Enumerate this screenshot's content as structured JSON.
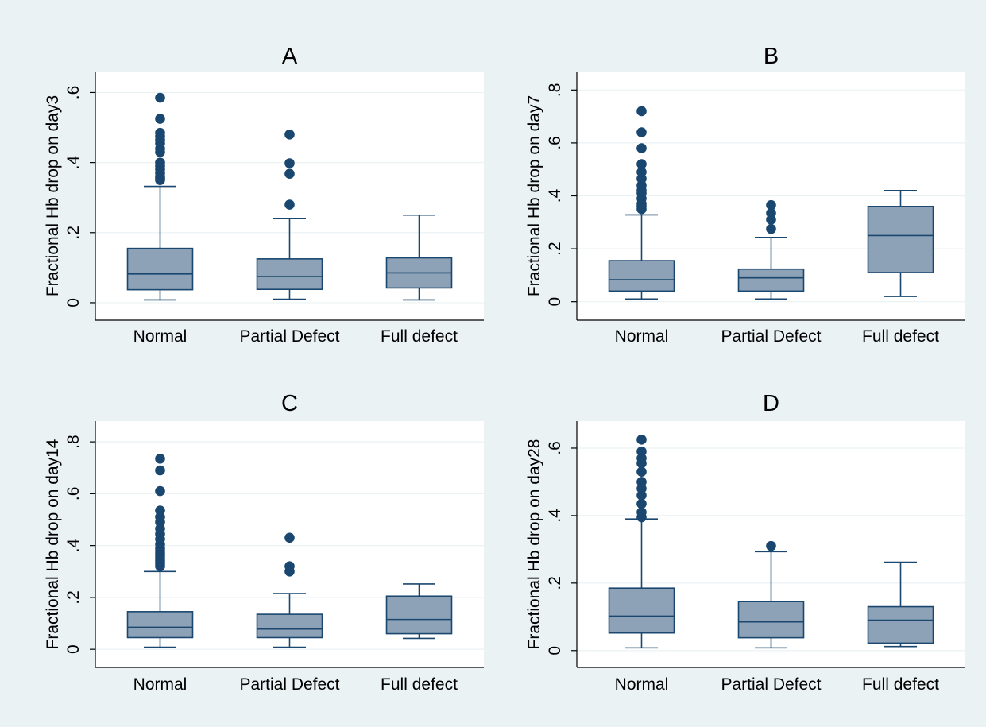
{
  "colors": {
    "outer_background": "#eaf2f3",
    "plot_background": "#ffffff",
    "gridline": "#eaf2f3",
    "box_fill": "#8da2b6",
    "box_stroke": "#1a476f",
    "outlier": "#1a476f",
    "axis": "#000000"
  },
  "chart_data": [
    {
      "type": "box",
      "title": "A",
      "ylabel": "Fractional Hb drop on day3",
      "categories": [
        "Normal",
        "Partial Defect",
        "Full defect"
      ],
      "yticks": [
        0,
        0.2,
        0.4,
        0.6
      ],
      "ytick_labels": [
        "0",
        ".2",
        ".4",
        ".6"
      ],
      "ylim": [
        -0.05,
        0.66
      ],
      "grid": true,
      "boxes": [
        {
          "category": "Normal",
          "whisker_low": 0.008,
          "q1": 0.037,
          "median": 0.082,
          "q3": 0.155,
          "whisker_high": 0.332,
          "outliers": [
            0.35,
            0.355,
            0.36,
            0.37,
            0.38,
            0.39,
            0.4,
            0.43,
            0.44,
            0.455,
            0.465,
            0.475,
            0.485,
            0.525,
            0.585
          ]
        },
        {
          "category": "Partial Defect",
          "whisker_low": 0.01,
          "q1": 0.038,
          "median": 0.075,
          "q3": 0.125,
          "whisker_high": 0.24,
          "outliers": [
            0.28,
            0.368,
            0.398,
            0.48
          ]
        },
        {
          "category": "Full defect",
          "whisker_low": 0.008,
          "q1": 0.042,
          "median": 0.085,
          "q3": 0.128,
          "whisker_high": 0.25,
          "outliers": []
        }
      ]
    },
    {
      "type": "box",
      "title": "B",
      "ylabel": "Fractional Hb drop on day7",
      "categories": [
        "Normal",
        "Partial Defect",
        "Full defect"
      ],
      "yticks": [
        0,
        0.2,
        0.4,
        0.6,
        0.8
      ],
      "ytick_labels": [
        "0",
        ".2",
        ".4",
        ".6",
        ".8"
      ],
      "ylim": [
        -0.07,
        0.87
      ],
      "grid": true,
      "boxes": [
        {
          "category": "Normal",
          "whisker_low": 0.01,
          "q1": 0.04,
          "median": 0.083,
          "q3": 0.155,
          "whisker_high": 0.328,
          "outliers": [
            0.35,
            0.36,
            0.37,
            0.39,
            0.41,
            0.42,
            0.44,
            0.465,
            0.49,
            0.52,
            0.58,
            0.64,
            0.72
          ]
        },
        {
          "category": "Partial Defect",
          "whisker_low": 0.01,
          "q1": 0.04,
          "median": 0.09,
          "q3": 0.123,
          "whisker_high": 0.243,
          "outliers": [
            0.275,
            0.31,
            0.335,
            0.365
          ]
        },
        {
          "category": "Full defect",
          "whisker_low": 0.02,
          "q1": 0.11,
          "median": 0.25,
          "q3": 0.36,
          "whisker_high": 0.42,
          "outliers": []
        }
      ]
    },
    {
      "type": "box",
      "title": "C",
      "ylabel": "Fractional Hb drop on day14",
      "categories": [
        "Normal",
        "Partial Defect",
        "Full defect"
      ],
      "yticks": [
        0,
        0.2,
        0.4,
        0.6,
        0.8
      ],
      "ytick_labels": [
        "0",
        ".2",
        ".4",
        ".6",
        ".8"
      ],
      "ylim": [
        -0.07,
        0.88
      ],
      "grid": true,
      "boxes": [
        {
          "category": "Normal",
          "whisker_low": 0.008,
          "q1": 0.045,
          "median": 0.085,
          "q3": 0.145,
          "whisker_high": 0.3,
          "outliers": [
            0.32,
            0.33,
            0.34,
            0.35,
            0.36,
            0.37,
            0.38,
            0.39,
            0.405,
            0.425,
            0.445,
            0.465,
            0.49,
            0.51,
            0.535,
            0.61,
            0.69,
            0.735
          ]
        },
        {
          "category": "Partial Defect",
          "whisker_low": 0.008,
          "q1": 0.045,
          "median": 0.078,
          "q3": 0.135,
          "whisker_high": 0.215,
          "outliers": [
            0.3,
            0.32,
            0.43
          ]
        },
        {
          "category": "Full defect",
          "whisker_low": 0.042,
          "q1": 0.06,
          "median": 0.115,
          "q3": 0.205,
          "whisker_high": 0.252,
          "outliers": []
        }
      ]
    },
    {
      "type": "box",
      "title": "D",
      "ylabel": "Fractional Hb drop on day28",
      "categories": [
        "Normal",
        "Partial Defect",
        "Full defect"
      ],
      "yticks": [
        0,
        0.2,
        0.4,
        0.6
      ],
      "ytick_labels": [
        "0",
        ".2",
        ".4",
        ".6"
      ],
      "ylim": [
        -0.05,
        0.68
      ],
      "grid": true,
      "boxes": [
        {
          "category": "Normal",
          "whisker_low": 0.008,
          "q1": 0.052,
          "median": 0.102,
          "q3": 0.185,
          "whisker_high": 0.39,
          "outliers": [
            0.395,
            0.41,
            0.435,
            0.46,
            0.48,
            0.5,
            0.53,
            0.555,
            0.57,
            0.59,
            0.625
          ]
        },
        {
          "category": "Partial Defect",
          "whisker_low": 0.008,
          "q1": 0.038,
          "median": 0.085,
          "q3": 0.145,
          "whisker_high": 0.293,
          "outliers": [
            0.31
          ]
        },
        {
          "category": "Full defect",
          "whisker_low": 0.012,
          "q1": 0.022,
          "median": 0.09,
          "q3": 0.13,
          "whisker_high": 0.262,
          "outliers": []
        }
      ]
    }
  ]
}
